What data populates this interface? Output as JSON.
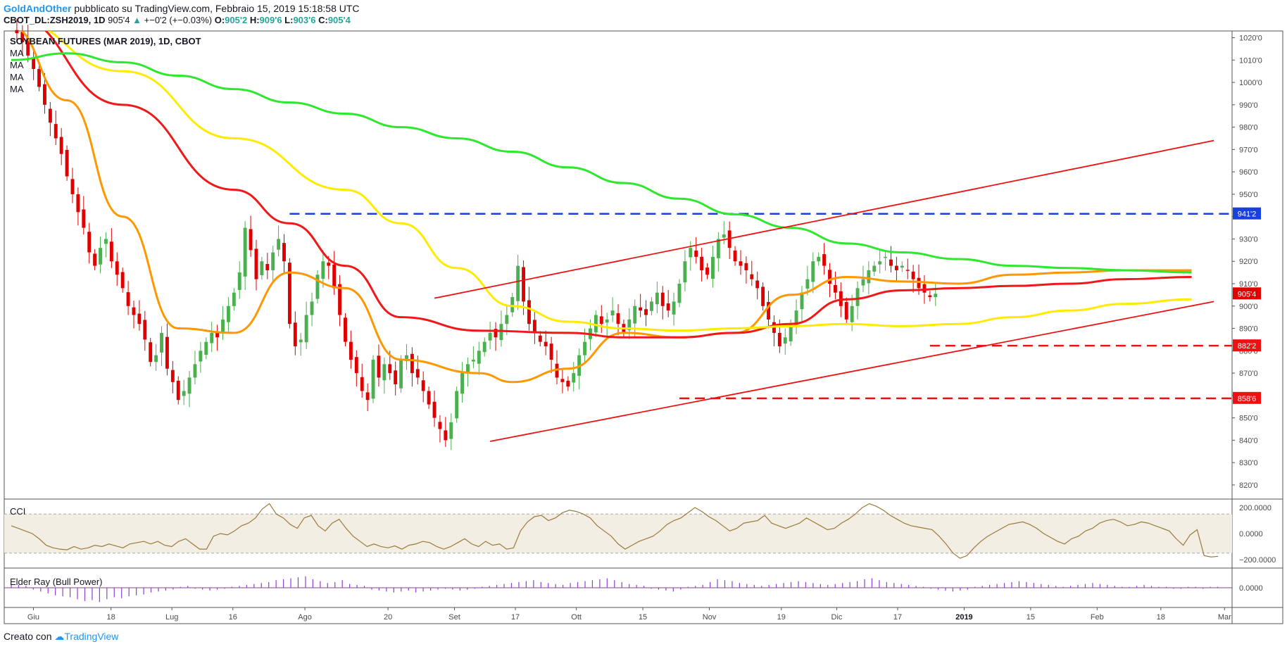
{
  "header": {
    "author": "GoldAndOther",
    "published": "pubblicato su TradingView.com, Febbraio 15, 2019 15:18:58 UTC",
    "symbol": "CBOT_DL:ZSH2019, 1D",
    "last": "905'4",
    "change": "+−0'2 (+−0.03%)",
    "o_label": "O:",
    "o": "905'2",
    "h_label": "H:",
    "h": "909'6",
    "l_label": "L:",
    "l": "903'6",
    "c_label": "C:",
    "c": "905'4"
  },
  "footer": {
    "prefix": "Creato con",
    "brand": "TradingView"
  },
  "colors": {
    "up": "#4caf50",
    "down": "#e00000",
    "ma_red": "#f01818",
    "ma_orange": "#ff9800",
    "ma_yellow": "#ffeb00",
    "ma_green": "#2ee82e",
    "resistance": "#1a3fe0",
    "support": "#ee1111",
    "cci": "#9a7b3a",
    "elder": "#8b3fd9"
  },
  "chart_data": [
    {
      "type": "candlestick",
      "title": "SOYBEAN FUTURES (MAR 2019), 1D, CBOT",
      "legend": [
        "MA",
        "MA",
        "MA",
        "MA"
      ],
      "y_ticks": [
        "1020'0",
        "1010'0",
        "1000'0",
        "990'0",
        "980'0",
        "970'0",
        "960'0",
        "950'0",
        "940'0",
        "930'0",
        "920'0",
        "910'0",
        "900'0",
        "890'0",
        "880'0",
        "870'0",
        "860'0",
        "850'0",
        "840'0",
        "830'0",
        "820'0"
      ],
      "x_ticks": [
        "Giu",
        "18",
        "Lug",
        "16",
        "Ago",
        "20",
        "Set",
        "17",
        "Ott",
        "15",
        "Nov",
        "19",
        "Dic",
        "17",
        "2019",
        "15",
        "Feb",
        "18",
        "Mar"
      ],
      "ylim": [
        814,
        1023
      ],
      "price_labels": [
        {
          "text": "941'2",
          "value": 941.25,
          "color": "#1a3fe0"
        },
        {
          "text": "905'4",
          "value": 905.5,
          "color": "#e00000"
        },
        {
          "text": "882'2",
          "value": 882.25,
          "color": "#ee1111"
        },
        {
          "text": "858'6",
          "value": 858.75,
          "color": "#ee1111"
        }
      ],
      "horizontal_levels": [
        {
          "name": "resistance",
          "value": 941.25,
          "from_day": 50
        },
        {
          "name": "support",
          "value": 882.25,
          "from_day": 165
        },
        {
          "name": "support",
          "value": 858.75,
          "from_day": 120
        }
      ],
      "trendlines": [
        {
          "points": [
            [
              86,
              839.5
            ],
            [
              216,
              902
            ]
          ]
        },
        {
          "points": [
            [
              76,
              903.5
            ],
            [
              216,
              974
            ]
          ]
        }
      ],
      "closes": [
        1024,
        1022,
        1018,
        1012,
        1006,
        998,
        990,
        982,
        975,
        968,
        958,
        950,
        942,
        935,
        924,
        918,
        926,
        930,
        920,
        914,
        908,
        900,
        896,
        892,
        885,
        875,
        878,
        888,
        872,
        866,
        858,
        862,
        868,
        874,
        880,
        884,
        888,
        886,
        894,
        900,
        906,
        915,
        935,
        925,
        912,
        920,
        916,
        924,
        930,
        920,
        892,
        882,
        885,
        896,
        902,
        914,
        920,
        918,
        908,
        896,
        884,
        876,
        870,
        862,
        858,
        876,
        868,
        874,
        870,
        865,
        876,
        878,
        870,
        868,
        862,
        856,
        850,
        845,
        840,
        848,
        862,
        870,
        874,
        876,
        880,
        884,
        888,
        886,
        892,
        896,
        904,
        918,
        902,
        892,
        888,
        884,
        882,
        876,
        868,
        866,
        864,
        870,
        878,
        884,
        890,
        896,
        892,
        894,
        898,
        892,
        888,
        894,
        900,
        898,
        896,
        902,
        906,
        900,
        898,
        902,
        910,
        920,
        926,
        922,
        916,
        914,
        922,
        930,
        932,
        926,
        920,
        918,
        916,
        912,
        908,
        900,
        894,
        888,
        882,
        886,
        892,
        898,
        906,
        912,
        920,
        922,
        918,
        910,
        906,
        900,
        894,
        900,
        908,
        912,
        916,
        918,
        920,
        922,
        918,
        916,
        918,
        916,
        912,
        908,
        906,
        904,
        905.5
      ],
      "series": [
        {
          "name": "MA",
          "color": "#ff9800",
          "points": [
            [
              0,
              1025
            ],
            [
              10,
              992
            ],
            [
              20,
              940
            ],
            [
              30,
              890
            ],
            [
              40,
              888
            ],
            [
              50,
              915
            ],
            [
              60,
              908
            ],
            [
              70,
              876
            ],
            [
              84,
              870
            ],
            [
              90,
              866
            ],
            [
              100,
              872
            ],
            [
              110,
              888
            ],
            [
              120,
              886
            ],
            [
              130,
              888
            ],
            [
              140,
              905
            ],
            [
              150,
              913
            ],
            [
              160,
              911
            ],
            [
              170,
              910
            ],
            [
              180,
              914
            ],
            [
              190,
              915
            ],
            [
              200,
              916
            ],
            [
              212,
              916
            ]
          ]
        },
        {
          "name": "MA",
          "color": "#f01818",
          "points": [
            [
              0,
              1030
            ],
            [
              20,
              990
            ],
            [
              40,
              952
            ],
            [
              50,
              937
            ],
            [
              60,
              918
            ],
            [
              70,
              895
            ],
            [
              84,
              889
            ],
            [
              100,
              888
            ],
            [
              110,
              886
            ],
            [
              120,
              886
            ],
            [
              130,
              888
            ],
            [
              140,
              892
            ],
            [
              150,
              903
            ],
            [
              160,
              907
            ],
            [
              170,
              908
            ],
            [
              180,
              909
            ],
            [
              190,
              910
            ],
            [
              200,
              912
            ],
            [
              212,
              913
            ]
          ]
        },
        {
          "name": "MA",
          "color": "#ffeb00",
          "points": [
            [
              0,
              1028
            ],
            [
              20,
              1005
            ],
            [
              40,
              975
            ],
            [
              60,
              952
            ],
            [
              70,
              937
            ],
            [
              80,
              917
            ],
            [
              90,
              900
            ],
            [
              100,
              893
            ],
            [
              110,
              890
            ],
            [
              120,
              889
            ],
            [
              130,
              890
            ],
            [
              140,
              891
            ],
            [
              150,
              892
            ],
            [
              160,
              891
            ],
            [
              170,
              892
            ],
            [
              180,
              895
            ],
            [
              190,
              898
            ],
            [
              200,
              901
            ],
            [
              212,
              903
            ]
          ]
        },
        {
          "name": "MA",
          "color": "#2ee82e",
          "points": [
            [
              0,
              1010
            ],
            [
              10,
              1013
            ],
            [
              20,
              1009
            ],
            [
              30,
              1003
            ],
            [
              40,
              997
            ],
            [
              50,
              991
            ],
            [
              60,
              986
            ],
            [
              70,
              980
            ],
            [
              80,
              975
            ],
            [
              90,
              969
            ],
            [
              100,
              962
            ],
            [
              110,
              955
            ],
            [
              120,
              948
            ],
            [
              130,
              941
            ],
            [
              140,
              935
            ],
            [
              150,
              928
            ],
            [
              160,
              924
            ],
            [
              170,
              921
            ],
            [
              180,
              918
            ],
            [
              190,
              917
            ],
            [
              200,
              916
            ],
            [
              212,
              915
            ]
          ]
        }
      ]
    },
    {
      "type": "line",
      "title": "CCI",
      "y_ticks": [
        "200.0000",
        "0.0000",
        "−200.0000"
      ],
      "ylim": [
        -260,
        260
      ],
      "band": [
        -150,
        150
      ],
      "values": [
        60,
        40,
        20,
        0,
        -40,
        -90,
        -110,
        -120,
        -125,
        -100,
        -120,
        -110,
        -90,
        -100,
        -80,
        -95,
        -110,
        -80,
        -70,
        -60,
        -80,
        -60,
        -90,
        -100,
        -60,
        -40,
        -80,
        -120,
        -120,
        -20,
        0,
        -10,
        20,
        60,
        80,
        120,
        190,
        230,
        150,
        120,
        70,
        40,
        120,
        140,
        60,
        20,
        80,
        110,
        40,
        -20,
        -60,
        -100,
        -80,
        -100,
        -110,
        -95,
        -120,
        -90,
        -80,
        -60,
        -70,
        -100,
        -120,
        -100,
        -70,
        -40,
        -80,
        -100,
        -60,
        -90,
        -80,
        -120,
        -110,
        20,
        90,
        130,
        140,
        100,
        120,
        160,
        180,
        170,
        150,
        120,
        60,
        20,
        -20,
        -80,
        -120,
        -90,
        -60,
        -40,
        -20,
        20,
        70,
        100,
        120,
        160,
        200,
        170,
        130,
        100,
        60,
        20,
        40,
        80,
        90,
        100,
        140,
        80,
        60,
        40,
        60,
        80,
        120,
        90,
        60,
        30,
        40,
        80,
        110,
        150,
        200,
        230,
        210,
        180,
        140,
        110,
        80,
        60,
        50,
        40,
        30,
        -20,
        -80,
        -150,
        -190,
        -170,
        -110,
        -60,
        -20,
        10,
        40,
        70,
        80,
        90,
        70,
        40,
        0,
        -30,
        -60,
        -80,
        -40,
        -20,
        20,
        40,
        80,
        100,
        110,
        90,
        60,
        70,
        90,
        80,
        60,
        40,
        20,
        -40,
        -90,
        -10,
        30,
        -170,
        -180,
        -175
      ]
    },
    {
      "type": "bar",
      "title": "Elder Ray (Bull Power)",
      "y_ticks": [
        "0.0000"
      ],
      "ylim": [
        -20,
        20
      ],
      "values": [
        4,
        3,
        2,
        -2,
        -4,
        -6,
        -8,
        -9,
        -10,
        -12,
        -14,
        -13,
        -15,
        -12,
        -10,
        -11,
        -9,
        -8,
        -7,
        -5,
        -4,
        -3,
        -2,
        1,
        2,
        -1,
        -2,
        -3,
        -2,
        -1,
        1,
        2,
        3,
        4,
        5,
        6,
        8,
        9,
        10,
        11,
        12,
        9,
        7,
        5,
        6,
        8,
        4,
        3,
        2,
        -2,
        -3,
        -4,
        -5,
        -4,
        -3,
        -5,
        -4,
        -3,
        -2,
        -1,
        -2,
        -3,
        -2,
        -1,
        1,
        2,
        3,
        4,
        5,
        6,
        7,
        8,
        6,
        5,
        4,
        3,
        5,
        6,
        7,
        8,
        9,
        10,
        8,
        6,
        4,
        3,
        2,
        -1,
        -2,
        -3,
        -4,
        -2,
        1,
        2,
        3,
        6,
        9,
        8,
        7,
        5,
        4,
        3,
        2,
        3,
        4,
        5,
        6,
        7,
        6,
        5,
        4,
        3,
        4,
        5,
        6,
        7,
        9,
        10,
        8,
        6,
        5,
        4,
        3,
        2,
        1,
        -1,
        -2,
        -3,
        -4,
        -3,
        -2,
        1,
        2,
        3,
        4,
        5,
        6,
        7,
        6,
        5,
        4,
        3,
        2,
        1,
        2,
        3,
        4,
        5,
        4,
        3,
        2,
        1,
        1,
        2,
        3,
        2,
        1,
        1,
        -1,
        -1,
        1,
        1,
        -1,
        1,
        1
      ]
    }
  ]
}
